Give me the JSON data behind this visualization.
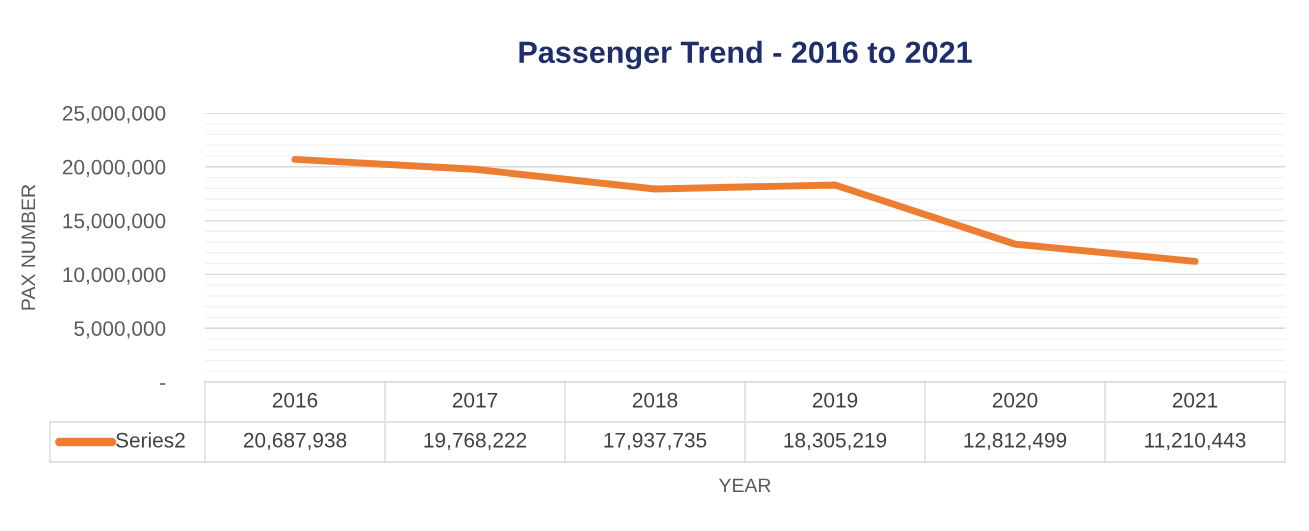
{
  "chart_data": {
    "type": "line",
    "title": "Passenger Trend - 2016 to 2021",
    "xlabel": "YEAR",
    "ylabel": "PAX NUMBER",
    "categories": [
      "2016",
      "2017",
      "2018",
      "2019",
      "2020",
      "2021"
    ],
    "series": [
      {
        "name": "Series2",
        "color": "#ed7d31",
        "values": [
          20687938,
          19768222,
          17937735,
          18305219,
          12812499,
          11210443
        ],
        "value_labels": [
          "20,687,938",
          "19,768,222",
          "17,937,735",
          "18,305,219",
          "12,812,499",
          "11,210,443"
        ]
      }
    ],
    "ylim": [
      0,
      25000000
    ],
    "yticks": [
      {
        "value": 0,
        "label": "-"
      },
      {
        "value": 5000000,
        "label": "5,000,000"
      },
      {
        "value": 10000000,
        "label": "10,000,000"
      },
      {
        "value": 15000000,
        "label": "15,000,000"
      },
      {
        "value": 20000000,
        "label": "20,000,000"
      },
      {
        "value": 25000000,
        "label": "25,000,000"
      }
    ],
    "grid": "y",
    "legend": "bottom",
    "marker": "none",
    "line_style": "solid"
  }
}
